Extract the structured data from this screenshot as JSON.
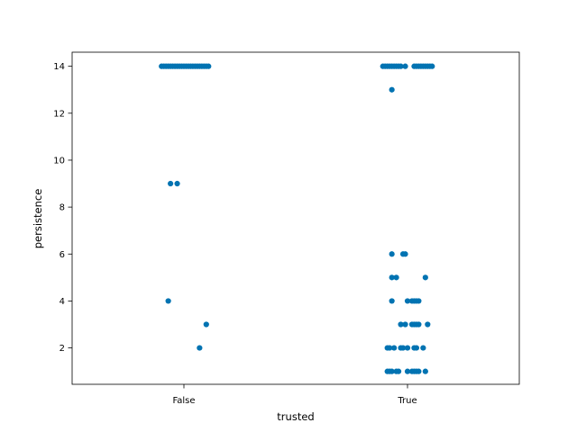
{
  "chart_data": {
    "type": "scatter",
    "subtype": "strip",
    "xlabel": "trusted",
    "ylabel": "persistence",
    "categories": [
      "False",
      "True"
    ],
    "ylim": [
      0.45,
      14.6
    ],
    "yticks": [
      2,
      4,
      6,
      8,
      10,
      12,
      14
    ],
    "grid": false,
    "marker_color": "#0173b2",
    "series": [
      {
        "category": "False",
        "points": [
          {
            "x": -0.1,
            "y": 14
          },
          {
            "x": -0.09,
            "y": 14
          },
          {
            "x": -0.08,
            "y": 14
          },
          {
            "x": -0.07,
            "y": 14
          },
          {
            "x": -0.06,
            "y": 14
          },
          {
            "x": -0.05,
            "y": 14
          },
          {
            "x": -0.04,
            "y": 14
          },
          {
            "x": -0.03,
            "y": 14
          },
          {
            "x": -0.02,
            "y": 14
          },
          {
            "x": -0.01,
            "y": 14
          },
          {
            "x": 0.0,
            "y": 14
          },
          {
            "x": 0.01,
            "y": 14
          },
          {
            "x": 0.02,
            "y": 14
          },
          {
            "x": 0.03,
            "y": 14
          },
          {
            "x": 0.04,
            "y": 14
          },
          {
            "x": 0.05,
            "y": 14
          },
          {
            "x": 0.06,
            "y": 14
          },
          {
            "x": 0.07,
            "y": 14
          },
          {
            "x": 0.08,
            "y": 14
          },
          {
            "x": 0.09,
            "y": 14
          },
          {
            "x": 0.1,
            "y": 14
          },
          {
            "x": 0.11,
            "y": 14
          },
          {
            "x": -0.06,
            "y": 9
          },
          {
            "x": -0.03,
            "y": 9
          },
          {
            "x": -0.07,
            "y": 4
          },
          {
            "x": 0.1,
            "y": 3
          },
          {
            "x": 0.07,
            "y": 2
          }
        ]
      },
      {
        "category": "True",
        "points": [
          {
            "x": -0.11,
            "y": 14
          },
          {
            "x": -0.1,
            "y": 14
          },
          {
            "x": -0.09,
            "y": 14
          },
          {
            "x": -0.08,
            "y": 14
          },
          {
            "x": -0.07,
            "y": 14
          },
          {
            "x": -0.06,
            "y": 14
          },
          {
            "x": -0.05,
            "y": 14
          },
          {
            "x": -0.04,
            "y": 14
          },
          {
            "x": -0.03,
            "y": 14
          },
          {
            "x": -0.01,
            "y": 14
          },
          {
            "x": 0.03,
            "y": 14
          },
          {
            "x": 0.04,
            "y": 14
          },
          {
            "x": 0.05,
            "y": 14
          },
          {
            "x": 0.06,
            "y": 14
          },
          {
            "x": 0.07,
            "y": 14
          },
          {
            "x": 0.08,
            "y": 14
          },
          {
            "x": 0.09,
            "y": 14
          },
          {
            "x": 0.1,
            "y": 14
          },
          {
            "x": 0.11,
            "y": 14
          },
          {
            "x": -0.07,
            "y": 13
          },
          {
            "x": -0.07,
            "y": 6
          },
          {
            "x": -0.02,
            "y": 6
          },
          {
            "x": -0.01,
            "y": 6
          },
          {
            "x": -0.07,
            "y": 5
          },
          {
            "x": -0.05,
            "y": 5
          },
          {
            "x": 0.08,
            "y": 5
          },
          {
            "x": -0.07,
            "y": 4
          },
          {
            "x": 0.0,
            "y": 4
          },
          {
            "x": 0.02,
            "y": 4
          },
          {
            "x": 0.03,
            "y": 4
          },
          {
            "x": 0.04,
            "y": 4
          },
          {
            "x": 0.05,
            "y": 4
          },
          {
            "x": -0.03,
            "y": 3
          },
          {
            "x": -0.01,
            "y": 3
          },
          {
            "x": 0.02,
            "y": 3
          },
          {
            "x": 0.03,
            "y": 3
          },
          {
            "x": 0.04,
            "y": 3
          },
          {
            "x": 0.05,
            "y": 3
          },
          {
            "x": 0.09,
            "y": 3
          },
          {
            "x": -0.09,
            "y": 2
          },
          {
            "x": -0.08,
            "y": 2
          },
          {
            "x": -0.06,
            "y": 2
          },
          {
            "x": -0.03,
            "y": 2
          },
          {
            "x": -0.02,
            "y": 2
          },
          {
            "x": 0.0,
            "y": 2
          },
          {
            "x": 0.03,
            "y": 2
          },
          {
            "x": 0.04,
            "y": 2
          },
          {
            "x": 0.07,
            "y": 2
          },
          {
            "x": -0.09,
            "y": 1
          },
          {
            "x": -0.08,
            "y": 1
          },
          {
            "x": -0.07,
            "y": 1
          },
          {
            "x": -0.05,
            "y": 1
          },
          {
            "x": -0.04,
            "y": 1
          },
          {
            "x": 0.0,
            "y": 1
          },
          {
            "x": 0.02,
            "y": 1
          },
          {
            "x": 0.03,
            "y": 1
          },
          {
            "x": 0.04,
            "y": 1
          },
          {
            "x": 0.05,
            "y": 1
          },
          {
            "x": 0.08,
            "y": 1
          }
        ]
      }
    ]
  }
}
